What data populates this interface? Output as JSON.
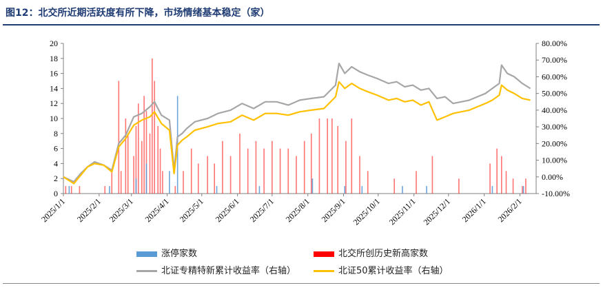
{
  "header": {
    "title": "图12：北交所近期活跃度有所下降，市场情绪基本稳定（家）"
  },
  "legend": {
    "limit_up": "涨停家数",
    "new_high": "北交所创历史新高家数",
    "zjtx": "北证专精特新累计收益率（右轴）",
    "bz50": "北证50累计收益率（右轴）"
  },
  "colors": {
    "limit_up": "#5b9bd5",
    "new_high": "#ff0000",
    "zjtx": "#a6a6a6",
    "bz50": "#ffc000",
    "title": "#1f3b73"
  },
  "chart_data": {
    "type": "bar+line",
    "ylim_left": [
      0,
      20
    ],
    "yticks_left": [
      "0",
      "2",
      "4",
      "6",
      "8",
      "10",
      "12",
      "14",
      "16",
      "18",
      "20"
    ],
    "ylim_right": [
      -10,
      80
    ],
    "yticks_right": [
      "-10.00%",
      "0.00%",
      "10.00%",
      "20.00%",
      "30.00%",
      "40.00%",
      "50.00%",
      "60.00%",
      "70.00%",
      "80.00%"
    ],
    "x_range": [
      "2025-01-01",
      "2026-02-15"
    ],
    "xticks": [
      "2025/1/1",
      "2025/2/1",
      "2025/3/1",
      "2025/4/1",
      "2025/5/1",
      "2025/6/1",
      "2025/7/1",
      "2025/8/1",
      "2025/9/1",
      "2025/10/1",
      "2025/11/1",
      "2025/12/1",
      "2026/1/1",
      "2026/2/1"
    ],
    "bar_series": [
      {
        "name": "北交所创历史新高家数",
        "points": [
          [
            "2025-01-03",
            1
          ],
          [
            "2025-01-08",
            1
          ],
          [
            "2025-01-15",
            1
          ],
          [
            "2025-02-06",
            1
          ],
          [
            "2025-02-12",
            3
          ],
          [
            "2025-02-18",
            15
          ],
          [
            "2025-02-20",
            3
          ],
          [
            "2025-02-24",
            10
          ],
          [
            "2025-02-26",
            8
          ],
          [
            "2025-03-03",
            5
          ],
          [
            "2025-03-05",
            9
          ],
          [
            "2025-03-07",
            12
          ],
          [
            "2025-03-10",
            7
          ],
          [
            "2025-03-12",
            13
          ],
          [
            "2025-03-14",
            11
          ],
          [
            "2025-03-17",
            8
          ],
          [
            "2025-03-19",
            18
          ],
          [
            "2025-03-21",
            15
          ],
          [
            "2025-03-24",
            9
          ],
          [
            "2025-03-26",
            6
          ],
          [
            "2025-03-28",
            3
          ],
          [
            "2025-04-08",
            1
          ],
          [
            "2025-04-15",
            3
          ],
          [
            "2025-04-22",
            6
          ],
          [
            "2025-04-28",
            4
          ],
          [
            "2025-05-06",
            5
          ],
          [
            "2025-05-12",
            4
          ],
          [
            "2025-05-19",
            7
          ],
          [
            "2025-05-26",
            5
          ],
          [
            "2025-06-03",
            8
          ],
          [
            "2025-06-10",
            6
          ],
          [
            "2025-06-17",
            7
          ],
          [
            "2025-06-24",
            6
          ],
          [
            "2025-07-01",
            7
          ],
          [
            "2025-07-08",
            6
          ],
          [
            "2025-07-15",
            6
          ],
          [
            "2025-07-22",
            5
          ],
          [
            "2025-07-29",
            7
          ],
          [
            "2025-08-04",
            8
          ],
          [
            "2025-08-11",
            10
          ],
          [
            "2025-08-18",
            10
          ],
          [
            "2025-08-22",
            10
          ],
          [
            "2025-08-27",
            9
          ],
          [
            "2025-09-03",
            7
          ],
          [
            "2025-09-08",
            10
          ],
          [
            "2025-09-15",
            5
          ],
          [
            "2025-09-22",
            3
          ],
          [
            "2025-10-15",
            2
          ],
          [
            "2025-11-03",
            3
          ],
          [
            "2025-11-17",
            5
          ],
          [
            "2025-12-10",
            2
          ],
          [
            "2026-01-06",
            4
          ],
          [
            "2026-01-12",
            6
          ],
          [
            "2026-01-16",
            5
          ],
          [
            "2026-01-20",
            3
          ],
          [
            "2026-01-26",
            2
          ],
          [
            "2026-02-03",
            1
          ],
          [
            "2026-02-06",
            2
          ]
        ]
      },
      {
        "name": "涨停家数",
        "points": [
          [
            "2025-01-06",
            1
          ],
          [
            "2025-02-10",
            1
          ],
          [
            "2025-03-05",
            2
          ],
          [
            "2025-03-14",
            4
          ],
          [
            "2025-04-03",
            3
          ],
          [
            "2025-04-10",
            13
          ],
          [
            "2025-05-14",
            1
          ],
          [
            "2025-06-20",
            1
          ],
          [
            "2025-08-05",
            2
          ],
          [
            "2025-09-02",
            1
          ],
          [
            "2025-09-17",
            1
          ],
          [
            "2025-10-22",
            1
          ],
          [
            "2025-11-12",
            1
          ],
          [
            "2026-01-08",
            1
          ],
          [
            "2026-02-04",
            1
          ]
        ]
      }
    ],
    "line_series": [
      {
        "name": "北证专精特新累计收益率（右轴）",
        "points": [
          [
            "2025-01-01",
            0
          ],
          [
            "2025-01-10",
            -3
          ],
          [
            "2025-01-16",
            2
          ],
          [
            "2025-01-22",
            6
          ],
          [
            "2025-01-28",
            9
          ],
          [
            "2025-02-05",
            7
          ],
          [
            "2025-02-12",
            4
          ],
          [
            "2025-02-18",
            20
          ],
          [
            "2025-02-24",
            25
          ],
          [
            "2025-03-03",
            36
          ],
          [
            "2025-03-10",
            38
          ],
          [
            "2025-03-17",
            42
          ],
          [
            "2025-03-21",
            45
          ],
          [
            "2025-03-27",
            37
          ],
          [
            "2025-04-03",
            34
          ],
          [
            "2025-04-07",
            4
          ],
          [
            "2025-04-10",
            24
          ],
          [
            "2025-04-14",
            26
          ],
          [
            "2025-04-18",
            29
          ],
          [
            "2025-04-25",
            33
          ],
          [
            "2025-05-06",
            35
          ],
          [
            "2025-05-15",
            38
          ],
          [
            "2025-05-26",
            40
          ],
          [
            "2025-06-05",
            44
          ],
          [
            "2025-06-15",
            41
          ],
          [
            "2025-06-25",
            45
          ],
          [
            "2025-07-05",
            45
          ],
          [
            "2025-07-15",
            43
          ],
          [
            "2025-07-25",
            46
          ],
          [
            "2025-08-04",
            47
          ],
          [
            "2025-08-15",
            48
          ],
          [
            "2025-08-25",
            55
          ],
          [
            "2025-08-28",
            68
          ],
          [
            "2025-09-02",
            62
          ],
          [
            "2025-09-08",
            66
          ],
          [
            "2025-09-15",
            63
          ],
          [
            "2025-09-22",
            61
          ],
          [
            "2025-09-30",
            59
          ],
          [
            "2025-10-10",
            56
          ],
          [
            "2025-10-17",
            57
          ],
          [
            "2025-10-24",
            54
          ],
          [
            "2025-10-31",
            55
          ],
          [
            "2025-11-07",
            52
          ],
          [
            "2025-11-14",
            53
          ],
          [
            "2025-11-21",
            47
          ],
          [
            "2025-11-28",
            48
          ],
          [
            "2025-12-05",
            44
          ],
          [
            "2025-12-12",
            45
          ],
          [
            "2025-12-19",
            46
          ],
          [
            "2025-12-26",
            48
          ],
          [
            "2026-01-02",
            50
          ],
          [
            "2026-01-08",
            53
          ],
          [
            "2026-01-14",
            56
          ],
          [
            "2026-01-16",
            67
          ],
          [
            "2026-01-21",
            62
          ],
          [
            "2026-01-27",
            60
          ],
          [
            "2026-02-03",
            56
          ],
          [
            "2026-02-10",
            53
          ]
        ]
      },
      {
        "name": "北证50累计收益率（右轴）",
        "points": [
          [
            "2025-01-01",
            0
          ],
          [
            "2025-01-10",
            -4
          ],
          [
            "2025-01-16",
            1
          ],
          [
            "2025-01-22",
            6
          ],
          [
            "2025-01-28",
            8
          ],
          [
            "2025-02-05",
            7
          ],
          [
            "2025-02-12",
            3
          ],
          [
            "2025-02-18",
            18
          ],
          [
            "2025-02-24",
            23
          ],
          [
            "2025-03-03",
            31
          ],
          [
            "2025-03-10",
            34
          ],
          [
            "2025-03-17",
            36
          ],
          [
            "2025-03-21",
            39
          ],
          [
            "2025-03-27",
            32
          ],
          [
            "2025-04-03",
            28
          ],
          [
            "2025-04-07",
            2
          ],
          [
            "2025-04-10",
            19
          ],
          [
            "2025-04-14",
            22
          ],
          [
            "2025-04-18",
            24
          ],
          [
            "2025-04-25",
            28
          ],
          [
            "2025-05-06",
            30
          ],
          [
            "2025-05-15",
            32
          ],
          [
            "2025-05-26",
            33
          ],
          [
            "2025-06-05",
            37
          ],
          [
            "2025-06-15",
            34
          ],
          [
            "2025-06-25",
            38
          ],
          [
            "2025-07-05",
            38
          ],
          [
            "2025-07-15",
            37
          ],
          [
            "2025-07-25",
            39
          ],
          [
            "2025-08-04",
            40
          ],
          [
            "2025-08-15",
            41
          ],
          [
            "2025-08-25",
            48
          ],
          [
            "2025-08-28",
            57
          ],
          [
            "2025-09-02",
            53
          ],
          [
            "2025-09-08",
            56
          ],
          [
            "2025-09-15",
            53
          ],
          [
            "2025-09-22",
            51
          ],
          [
            "2025-09-30",
            49
          ],
          [
            "2025-10-10",
            46
          ],
          [
            "2025-10-17",
            47
          ],
          [
            "2025-10-24",
            45
          ],
          [
            "2025-10-31",
            46
          ],
          [
            "2025-11-07",
            43
          ],
          [
            "2025-11-14",
            45
          ],
          [
            "2025-11-21",
            34
          ],
          [
            "2025-11-28",
            36
          ],
          [
            "2025-12-05",
            38
          ],
          [
            "2025-12-12",
            39
          ],
          [
            "2025-12-19",
            40
          ],
          [
            "2025-12-26",
            42
          ],
          [
            "2026-01-02",
            44
          ],
          [
            "2026-01-08",
            46
          ],
          [
            "2026-01-14",
            49
          ],
          [
            "2026-01-16",
            55
          ],
          [
            "2026-01-21",
            52
          ],
          [
            "2026-01-27",
            50
          ],
          [
            "2026-02-03",
            47
          ],
          [
            "2026-02-10",
            46
          ]
        ]
      }
    ]
  }
}
